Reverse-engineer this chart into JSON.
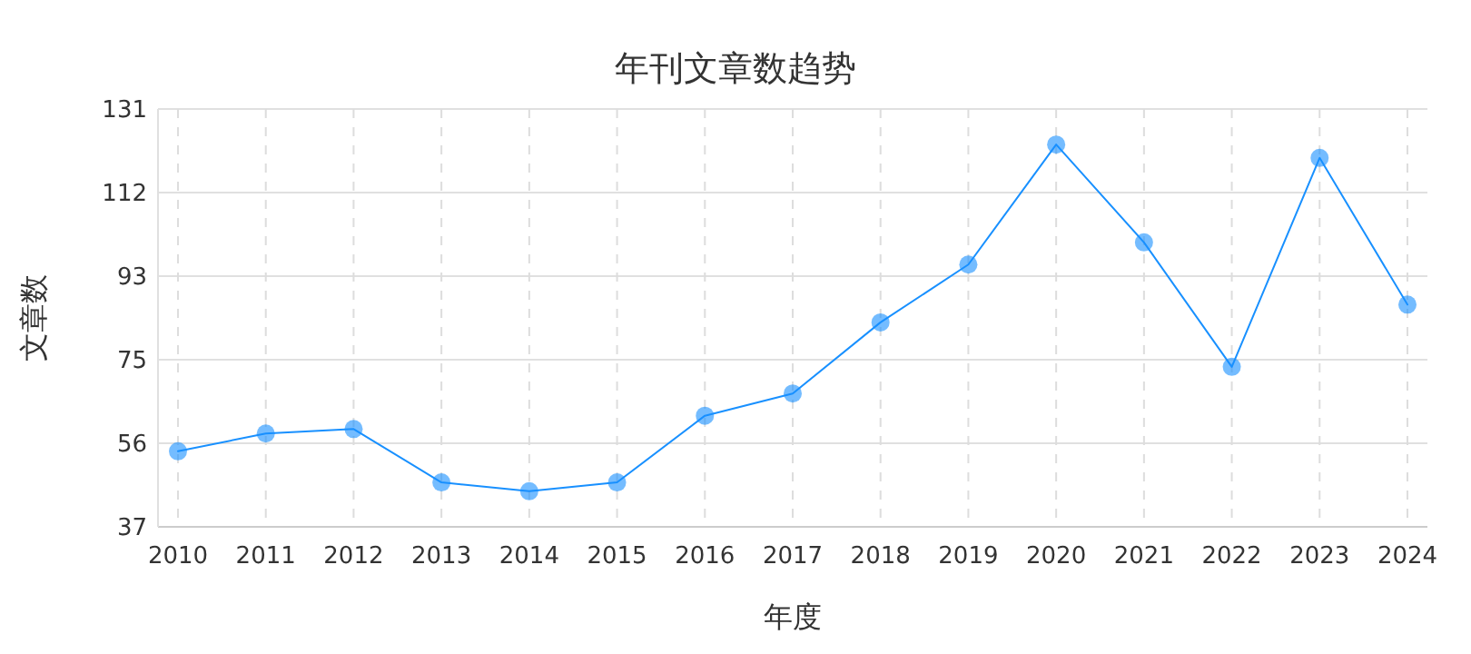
{
  "chart_data": {
    "type": "line",
    "title": "年刊文章数趋势",
    "xlabel": "年度",
    "ylabel": "文章数",
    "categories": [
      "2010",
      "2011",
      "2012",
      "2013",
      "2014",
      "2015",
      "2016",
      "2017",
      "2018",
      "2019",
      "2020",
      "2021",
      "2022",
      "2023",
      "2024"
    ],
    "series": [
      {
        "color": "#1890ff",
        "values": [
          54,
          58,
          59,
          47,
          45,
          47,
          62,
          67,
          83,
          96,
          123,
          101,
          73,
          120,
          87
        ]
      }
    ],
    "ylim": [
      37,
      131
    ],
    "yticks": [
      37,
      {
        "value": 55.8,
        "label": "56"
      },
      {
        "value": 74.6,
        "label": "75"
      },
      {
        "value": 93.4,
        "label": "93"
      },
      {
        "value": 112.2,
        "label": "112"
      },
      131
    ],
    "grid": true,
    "marker": "circle",
    "line_style": "solid"
  }
}
